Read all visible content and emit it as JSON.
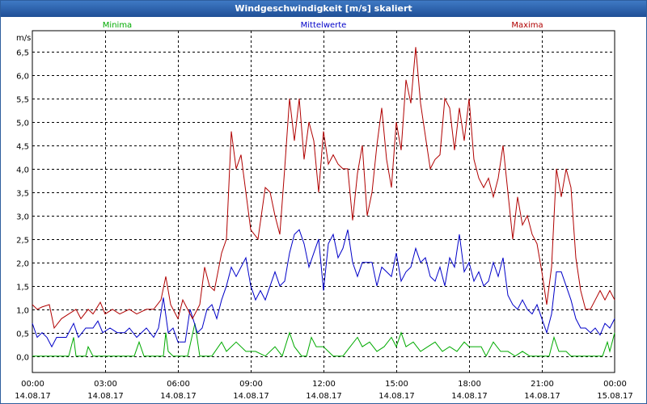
{
  "window": {
    "title": "Windgeschwindigkeit [m/s] skaliert"
  },
  "chart_data": {
    "type": "line",
    "title": "Windgeschwindigkeit [m/s] skaliert",
    "ylabel": "m/s",
    "xlabel": "",
    "grid": true,
    "ylim": [
      -0.35,
      6.95
    ],
    "y_ticks": [
      "0,0",
      "0,5",
      "1,0",
      "1,5",
      "2,0",
      "2,5",
      "3,0",
      "3,5",
      "4,0",
      "4,5",
      "5,0",
      "5,5",
      "6,0",
      "6,5"
    ],
    "x_range_hours": [
      0,
      24
    ],
    "x_ticks": [
      {
        "h": 0,
        "time": "00:00",
        "date": "14.08.17"
      },
      {
        "h": 3,
        "time": "03:00",
        "date": "14.08.17"
      },
      {
        "h": 6,
        "time": "06:00",
        "date": "14.08.17"
      },
      {
        "h": 9,
        "time": "09:00",
        "date": "14.08.17"
      },
      {
        "h": 12,
        "time": "12:00",
        "date": "14.08.17"
      },
      {
        "h": 15,
        "time": "15:00",
        "date": "14.08.17"
      },
      {
        "h": 18,
        "time": "18:00",
        "date": "14.08.17"
      },
      {
        "h": 21,
        "time": "21:00",
        "date": "14.08.17"
      },
      {
        "h": 24,
        "time": "00:00",
        "date": "15.08.17"
      }
    ],
    "series": [
      {
        "name": "Minima",
        "color": "#00aa00",
        "legend_pos": "left",
        "points": [
          [
            0,
            0
          ],
          [
            0.5,
            0
          ],
          [
            1.5,
            0
          ],
          [
            1.7,
            0.4
          ],
          [
            1.8,
            0
          ],
          [
            2.2,
            0
          ],
          [
            2.3,
            0.2
          ],
          [
            2.5,
            0
          ],
          [
            4.2,
            0
          ],
          [
            4.4,
            0.3
          ],
          [
            4.6,
            0
          ],
          [
            5.4,
            0
          ],
          [
            5.5,
            0.5
          ],
          [
            5.6,
            0.1
          ],
          [
            5.8,
            0
          ],
          [
            6.4,
            0
          ],
          [
            6.7,
            0.7
          ],
          [
            6.9,
            0
          ],
          [
            7.4,
            0
          ],
          [
            7.8,
            0.3
          ],
          [
            8.0,
            0.1
          ],
          [
            8.4,
            0.3
          ],
          [
            8.8,
            0.1
          ],
          [
            9.2,
            0.1
          ],
          [
            9.6,
            0
          ],
          [
            10.0,
            0.2
          ],
          [
            10.3,
            0
          ],
          [
            10.6,
            0.5
          ],
          [
            10.8,
            0.2
          ],
          [
            11.1,
            0
          ],
          [
            11.3,
            0
          ],
          [
            11.5,
            0.4
          ],
          [
            11.7,
            0.2
          ],
          [
            12.0,
            0.2
          ],
          [
            12.4,
            0
          ],
          [
            12.8,
            0
          ],
          [
            13.1,
            0.2
          ],
          [
            13.4,
            0.4
          ],
          [
            13.6,
            0.2
          ],
          [
            13.9,
            0.3
          ],
          [
            14.2,
            0.1
          ],
          [
            14.5,
            0.2
          ],
          [
            14.8,
            0.4
          ],
          [
            15.0,
            0.2
          ],
          [
            15.2,
            0.5
          ],
          [
            15.4,
            0.2
          ],
          [
            15.7,
            0.3
          ],
          [
            16.0,
            0.1
          ],
          [
            16.3,
            0.2
          ],
          [
            16.6,
            0.3
          ],
          [
            16.9,
            0.1
          ],
          [
            17.2,
            0.2
          ],
          [
            17.5,
            0.1
          ],
          [
            17.8,
            0.3
          ],
          [
            18.0,
            0.2
          ],
          [
            18.5,
            0.2
          ],
          [
            18.7,
            0
          ],
          [
            19.0,
            0.3
          ],
          [
            19.3,
            0.1
          ],
          [
            19.6,
            0.1
          ],
          [
            19.9,
            0
          ],
          [
            20.2,
            0.1
          ],
          [
            20.5,
            0
          ],
          [
            21.0,
            0
          ],
          [
            21.3,
            0
          ],
          [
            21.5,
            0.4
          ],
          [
            21.7,
            0.1
          ],
          [
            22.0,
            0.1
          ],
          [
            22.2,
            0
          ],
          [
            23.5,
            0
          ],
          [
            23.7,
            0.3
          ],
          [
            23.8,
            0.1
          ],
          [
            24,
            0.5
          ]
        ]
      },
      {
        "name": "Mittelwerte",
        "color": "#0000c8",
        "legend_pos": "center",
        "points": [
          [
            0,
            0.7
          ],
          [
            0.2,
            0.4
          ],
          [
            0.4,
            0.5
          ],
          [
            0.6,
            0.4
          ],
          [
            0.8,
            0.2
          ],
          [
            1.0,
            0.4
          ],
          [
            1.4,
            0.4
          ],
          [
            1.7,
            0.7
          ],
          [
            1.9,
            0.4
          ],
          [
            2.2,
            0.6
          ],
          [
            2.5,
            0.6
          ],
          [
            2.7,
            0.75
          ],
          [
            2.9,
            0.5
          ],
          [
            3.2,
            0.6
          ],
          [
            3.5,
            0.5
          ],
          [
            3.8,
            0.5
          ],
          [
            4.0,
            0.6
          ],
          [
            4.3,
            0.4
          ],
          [
            4.7,
            0.6
          ],
          [
            5.0,
            0.4
          ],
          [
            5.2,
            0.6
          ],
          [
            5.4,
            1.25
          ],
          [
            5.6,
            0.5
          ],
          [
            5.8,
            0.6
          ],
          [
            6.0,
            0.3
          ],
          [
            6.3,
            0.3
          ],
          [
            6.5,
            1.0
          ],
          [
            6.8,
            0.5
          ],
          [
            7.0,
            0.6
          ],
          [
            7.2,
            1.0
          ],
          [
            7.4,
            1.1
          ],
          [
            7.6,
            0.8
          ],
          [
            7.8,
            1.2
          ],
          [
            8.0,
            1.5
          ],
          [
            8.2,
            1.9
          ],
          [
            8.4,
            1.7
          ],
          [
            8.6,
            1.9
          ],
          [
            8.8,
            2.1
          ],
          [
            9.0,
            1.5
          ],
          [
            9.2,
            1.2
          ],
          [
            9.4,
            1.4
          ],
          [
            9.6,
            1.2
          ],
          [
            9.8,
            1.5
          ],
          [
            10.0,
            1.8
          ],
          [
            10.2,
            1.5
          ],
          [
            10.4,
            1.6
          ],
          [
            10.6,
            2.2
          ],
          [
            10.8,
            2.6
          ],
          [
            11.0,
            2.7
          ],
          [
            11.2,
            2.4
          ],
          [
            11.4,
            1.9
          ],
          [
            11.6,
            2.2
          ],
          [
            11.8,
            2.5
          ],
          [
            12.0,
            1.4
          ],
          [
            12.2,
            2.4
          ],
          [
            12.4,
            2.6
          ],
          [
            12.6,
            2.1
          ],
          [
            12.8,
            2.3
          ],
          [
            13.0,
            2.7
          ],
          [
            13.2,
            2.0
          ],
          [
            13.4,
            1.7
          ],
          [
            13.6,
            2.0
          ],
          [
            13.8,
            2.0
          ],
          [
            14.0,
            2.0
          ],
          [
            14.2,
            1.5
          ],
          [
            14.4,
            1.9
          ],
          [
            14.6,
            1.8
          ],
          [
            14.8,
            1.7
          ],
          [
            15.0,
            2.2
          ],
          [
            15.2,
            1.6
          ],
          [
            15.4,
            1.8
          ],
          [
            15.6,
            1.9
          ],
          [
            15.8,
            2.3
          ],
          [
            16.0,
            2.0
          ],
          [
            16.2,
            2.1
          ],
          [
            16.4,
            1.7
          ],
          [
            16.6,
            1.6
          ],
          [
            16.8,
            1.9
          ],
          [
            17.0,
            1.5
          ],
          [
            17.2,
            2.1
          ],
          [
            17.4,
            1.9
          ],
          [
            17.6,
            2.6
          ],
          [
            17.8,
            1.8
          ],
          [
            18.0,
            2.0
          ],
          [
            18.2,
            1.6
          ],
          [
            18.4,
            1.8
          ],
          [
            18.6,
            1.5
          ],
          [
            18.8,
            1.6
          ],
          [
            19.0,
            2.0
          ],
          [
            19.2,
            1.7
          ],
          [
            19.4,
            2.1
          ],
          [
            19.6,
            1.3
          ],
          [
            19.8,
            1.1
          ],
          [
            20.0,
            1.0
          ],
          [
            20.2,
            1.2
          ],
          [
            20.4,
            1.0
          ],
          [
            20.6,
            0.9
          ],
          [
            20.8,
            1.1
          ],
          [
            21.0,
            0.8
          ],
          [
            21.2,
            0.5
          ],
          [
            21.4,
            0.9
          ],
          [
            21.6,
            1.8
          ],
          [
            21.8,
            1.8
          ],
          [
            22.0,
            1.5
          ],
          [
            22.2,
            1.2
          ],
          [
            22.4,
            0.8
          ],
          [
            22.6,
            0.6
          ],
          [
            22.8,
            0.6
          ],
          [
            23.0,
            0.5
          ],
          [
            23.2,
            0.6
          ],
          [
            23.4,
            0.45
          ],
          [
            23.6,
            0.7
          ],
          [
            23.8,
            0.6
          ],
          [
            24,
            0.8
          ]
        ]
      },
      {
        "name": "Maxima",
        "color": "#b00000",
        "legend_pos": "right",
        "points": [
          [
            0,
            1.1
          ],
          [
            0.2,
            1.0
          ],
          [
            0.4,
            1.05
          ],
          [
            0.7,
            1.1
          ],
          [
            0.9,
            0.6
          ],
          [
            1.2,
            0.8
          ],
          [
            1.5,
            0.9
          ],
          [
            1.8,
            1.0
          ],
          [
            2.0,
            0.8
          ],
          [
            2.3,
            1.0
          ],
          [
            2.5,
            0.9
          ],
          [
            2.8,
            1.15
          ],
          [
            3.0,
            0.9
          ],
          [
            3.3,
            1.0
          ],
          [
            3.6,
            0.9
          ],
          [
            4.0,
            1.0
          ],
          [
            4.3,
            0.9
          ],
          [
            4.7,
            1.0
          ],
          [
            5.0,
            1.0
          ],
          [
            5.3,
            1.2
          ],
          [
            5.5,
            1.7
          ],
          [
            5.7,
            1.1
          ],
          [
            6.0,
            0.8
          ],
          [
            6.2,
            1.2
          ],
          [
            6.4,
            1.0
          ],
          [
            6.6,
            0.8
          ],
          [
            6.9,
            1.1
          ],
          [
            7.1,
            1.9
          ],
          [
            7.3,
            1.5
          ],
          [
            7.5,
            1.4
          ],
          [
            7.8,
            2.2
          ],
          [
            8.0,
            2.5
          ],
          [
            8.2,
            4.8
          ],
          [
            8.4,
            4.0
          ],
          [
            8.6,
            4.3
          ],
          [
            8.8,
            3.5
          ],
          [
            9.0,
            2.7
          ],
          [
            9.3,
            2.5
          ],
          [
            9.6,
            3.6
          ],
          [
            9.8,
            3.5
          ],
          [
            10.0,
            3.0
          ],
          [
            10.2,
            2.6
          ],
          [
            10.4,
            4.0
          ],
          [
            10.6,
            5.5
          ],
          [
            10.8,
            4.6
          ],
          [
            11.0,
            5.5
          ],
          [
            11.2,
            4.2
          ],
          [
            11.4,
            5.0
          ],
          [
            11.6,
            4.6
          ],
          [
            11.8,
            3.5
          ],
          [
            12.0,
            4.8
          ],
          [
            12.2,
            4.1
          ],
          [
            12.4,
            4.3
          ],
          [
            12.6,
            4.1
          ],
          [
            12.8,
            4.0
          ],
          [
            13.0,
            4.0
          ],
          [
            13.2,
            2.9
          ],
          [
            13.4,
            3.9
          ],
          [
            13.6,
            4.5
          ],
          [
            13.8,
            3.0
          ],
          [
            14.0,
            3.5
          ],
          [
            14.2,
            4.5
          ],
          [
            14.4,
            5.3
          ],
          [
            14.6,
            4.2
          ],
          [
            14.8,
            3.6
          ],
          [
            15.0,
            5.0
          ],
          [
            15.2,
            4.4
          ],
          [
            15.4,
            5.9
          ],
          [
            15.6,
            5.4
          ],
          [
            15.8,
            6.6
          ],
          [
            16.0,
            5.4
          ],
          [
            16.2,
            4.7
          ],
          [
            16.4,
            4.0
          ],
          [
            16.6,
            4.2
          ],
          [
            16.8,
            4.3
          ],
          [
            17.0,
            5.5
          ],
          [
            17.2,
            5.3
          ],
          [
            17.4,
            4.4
          ],
          [
            17.6,
            5.3
          ],
          [
            17.8,
            4.6
          ],
          [
            18.0,
            5.5
          ],
          [
            18.2,
            4.2
          ],
          [
            18.4,
            3.8
          ],
          [
            18.6,
            3.6
          ],
          [
            18.8,
            3.8
          ],
          [
            19.0,
            3.4
          ],
          [
            19.2,
            3.8
          ],
          [
            19.4,
            4.5
          ],
          [
            19.6,
            3.5
          ],
          [
            19.8,
            2.5
          ],
          [
            20.0,
            3.4
          ],
          [
            20.2,
            2.8
          ],
          [
            20.4,
            3.0
          ],
          [
            20.6,
            2.6
          ],
          [
            20.8,
            2.4
          ],
          [
            21.0,
            1.8
          ],
          [
            21.2,
            1.1
          ],
          [
            21.4,
            1.9
          ],
          [
            21.6,
            4.0
          ],
          [
            21.8,
            3.4
          ],
          [
            22.0,
            4.0
          ],
          [
            22.2,
            3.6
          ],
          [
            22.4,
            2.1
          ],
          [
            22.6,
            1.4
          ],
          [
            22.8,
            1.0
          ],
          [
            23.0,
            1.0
          ],
          [
            23.2,
            1.2
          ],
          [
            23.4,
            1.4
          ],
          [
            23.6,
            1.2
          ],
          [
            23.8,
            1.4
          ],
          [
            24,
            1.2
          ]
        ]
      }
    ]
  }
}
